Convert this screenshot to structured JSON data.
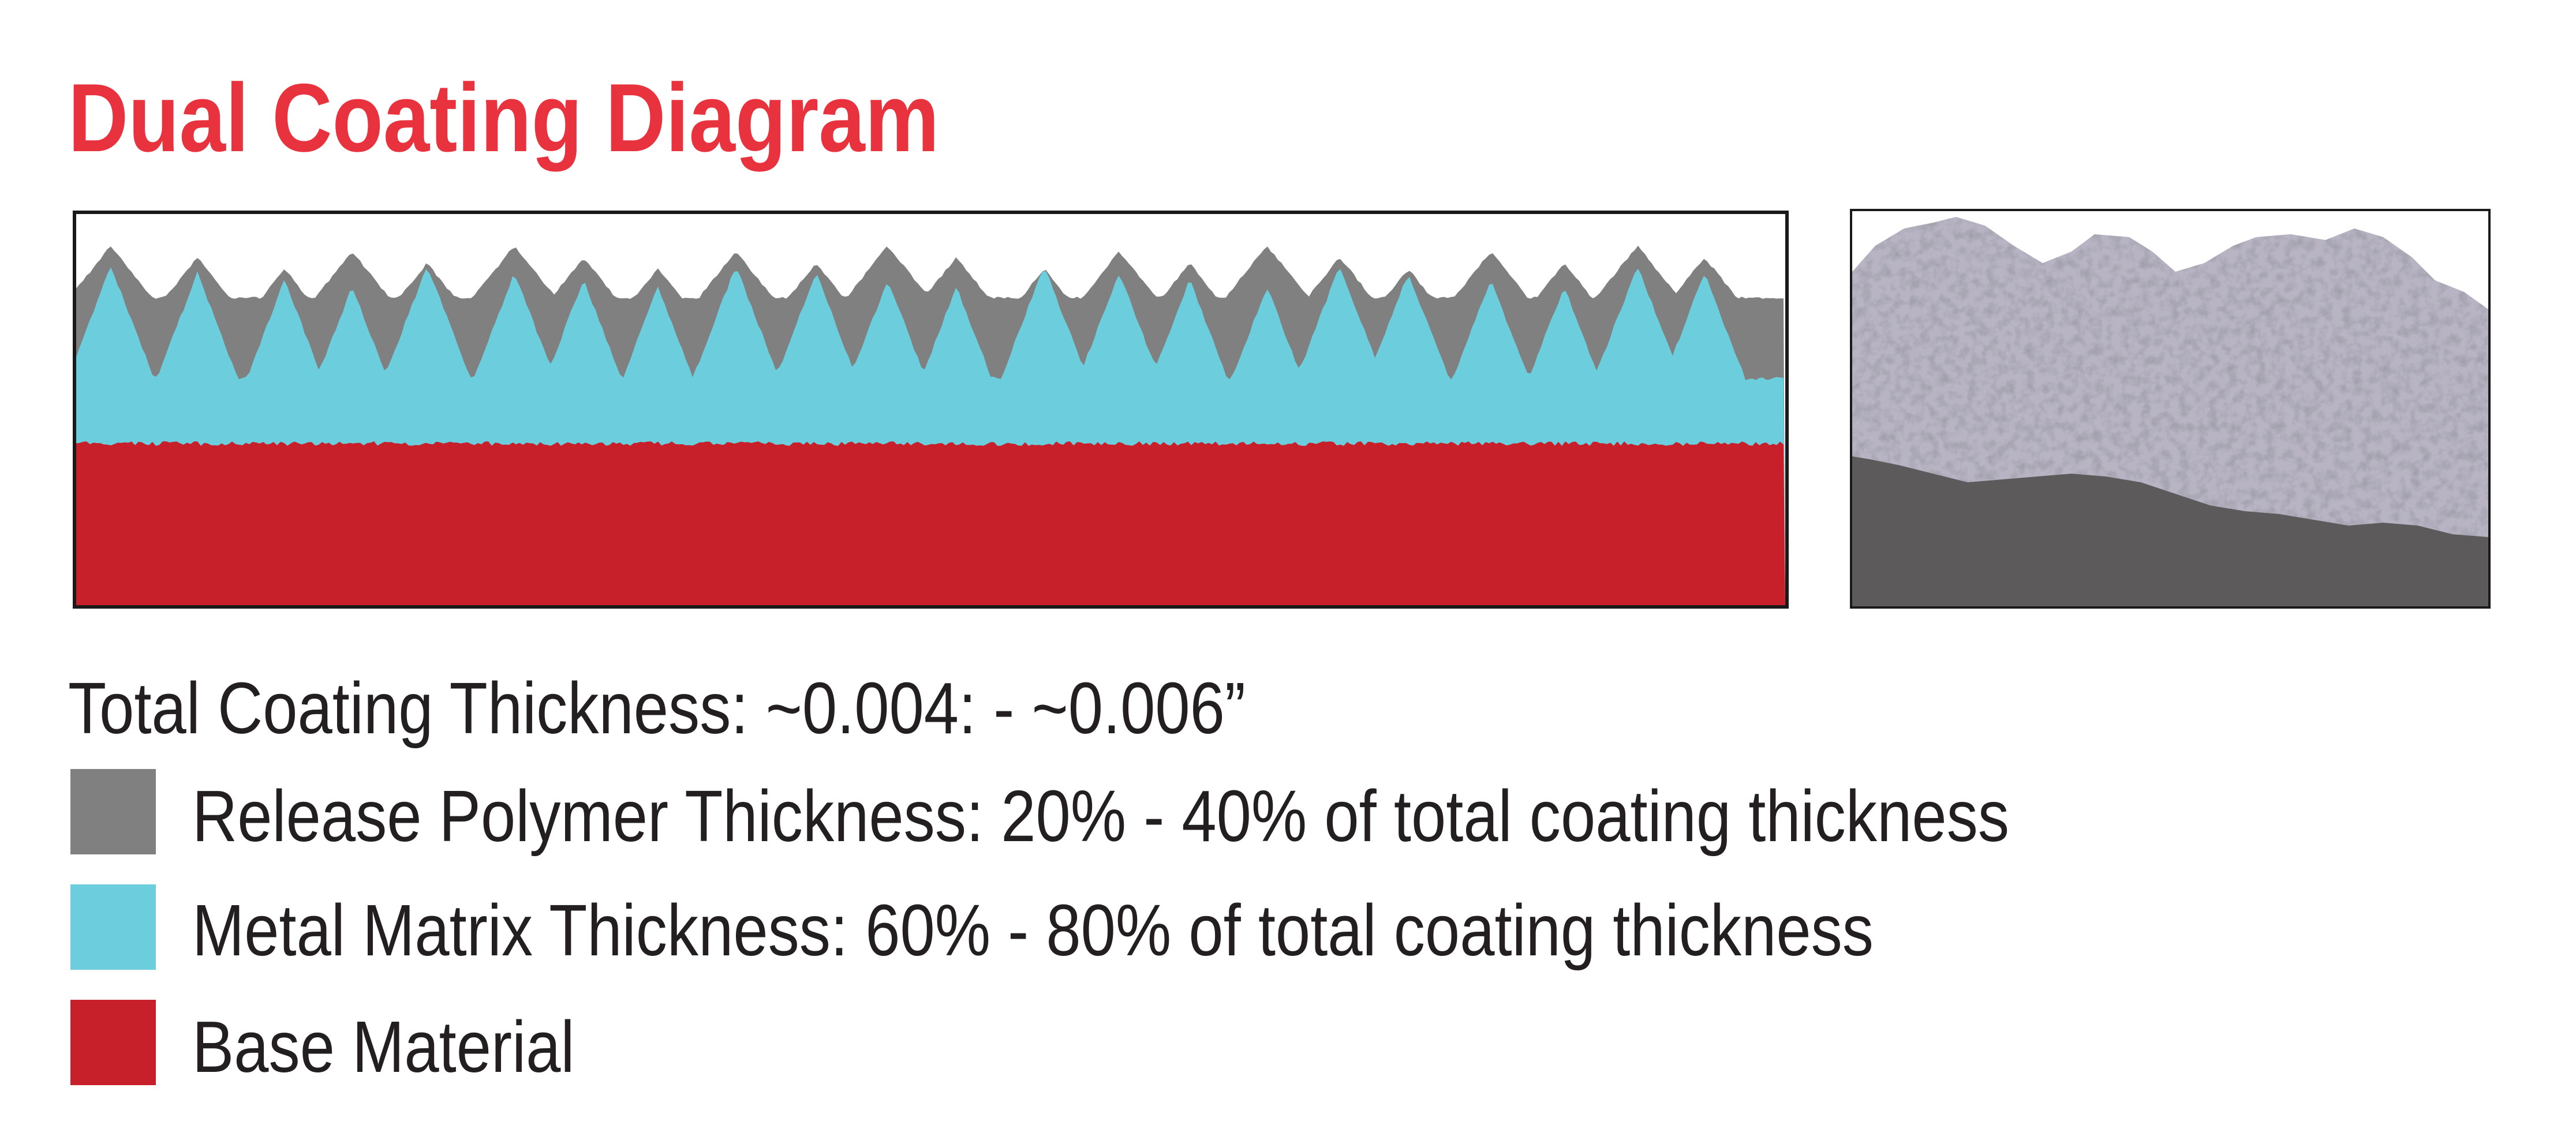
{
  "title": "Dual Coating Diagram",
  "colors": {
    "title": "#e8333f",
    "release_polymer": "#808080",
    "metal_matrix": "#6ccddc",
    "base_material": "#c8202a",
    "text": "#231f20"
  },
  "total_thickness": "Total Coating Thickness: ~0.004: - ~0.006”",
  "legend": [
    {
      "label": "Release Polymer Thickness: 20% - 40% of total coating thickness",
      "color": "#808080"
    },
    {
      "label": "Metal Matrix Thickness: 60% - 80% of total coating thickness",
      "color": "#6ccddc"
    },
    {
      "label": "Base Material",
      "color": "#c8202a"
    }
  ]
}
